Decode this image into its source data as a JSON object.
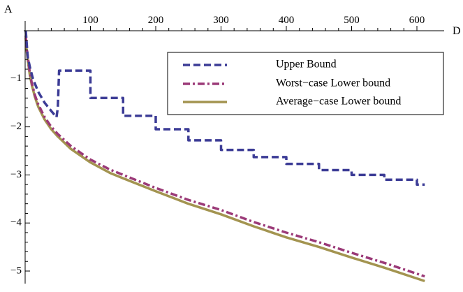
{
  "chart_data": {
    "type": "line",
    "xlabel": "D",
    "ylabel": "A",
    "xlim": [
      0,
      620
    ],
    "ylim": [
      -5.2,
      0.05
    ],
    "x_ticks": [
      100,
      200,
      300,
      400,
      500,
      600
    ],
    "x_tick_labels": [
      "100",
      "200",
      "300",
      "400",
      "500",
      "600"
    ],
    "y_ticks": [
      -1,
      -2,
      -3,
      -4,
      -5
    ],
    "y_tick_labels": [
      "−1",
      "−2",
      "−3",
      "−4",
      "−5"
    ],
    "grid": false,
    "legend_position": "top-right",
    "series": [
      {
        "name": "Upper Bound",
        "color": "#3c3c96",
        "style": "dashed",
        "x": [
          1,
          4,
          8,
          12,
          20,
          30,
          40,
          48,
          50,
          52,
          100,
          100,
          150,
          150,
          200,
          200,
          250,
          250,
          300,
          300,
          350,
          350,
          400,
          400,
          450,
          450,
          500,
          500,
          550,
          550,
          600,
          600,
          612
        ],
        "y": [
          0,
          -0.55,
          -0.8,
          -1.0,
          -1.27,
          -1.5,
          -1.67,
          -1.8,
          -1.6,
          -0.83,
          -0.83,
          -1.4,
          -1.4,
          -1.77,
          -1.77,
          -2.05,
          -2.05,
          -2.28,
          -2.28,
          -2.48,
          -2.48,
          -2.63,
          -2.63,
          -2.77,
          -2.77,
          -2.9,
          -2.9,
          -3.0,
          -3.0,
          -3.1,
          -3.1,
          -3.2,
          -3.2
        ]
      },
      {
        "name": "Worst−case Lower bound",
        "color": "#9b3a78",
        "style": "dashdot",
        "x": [
          1,
          2,
          4,
          7,
          10,
          15,
          20,
          30,
          40,
          50,
          70,
          100,
          130,
          150,
          200,
          250,
          300,
          350,
          400,
          450,
          500,
          550,
          612
        ],
        "y": [
          -0.1,
          -0.32,
          -0.53,
          -0.85,
          -1.08,
          -1.34,
          -1.53,
          -1.8,
          -2.0,
          -2.15,
          -2.4,
          -2.68,
          -2.89,
          -3.0,
          -3.27,
          -3.52,
          -3.73,
          -3.98,
          -4.2,
          -4.4,
          -4.62,
          -4.83,
          -5.11
        ]
      },
      {
        "name": "Average−case Lower bound",
        "color": "#a39450",
        "style": "solid",
        "x": [
          1,
          2,
          4,
          7,
          10,
          15,
          20,
          30,
          40,
          50,
          70,
          100,
          130,
          150,
          200,
          250,
          300,
          350,
          400,
          450,
          500,
          550,
          612
        ],
        "y": [
          -0.15,
          -0.38,
          -0.6,
          -0.9,
          -1.12,
          -1.38,
          -1.58,
          -1.85,
          -2.05,
          -2.2,
          -2.46,
          -2.74,
          -2.96,
          -3.07,
          -3.34,
          -3.6,
          -3.82,
          -4.07,
          -4.3,
          -4.5,
          -4.72,
          -4.93,
          -5.21
        ]
      }
    ]
  }
}
